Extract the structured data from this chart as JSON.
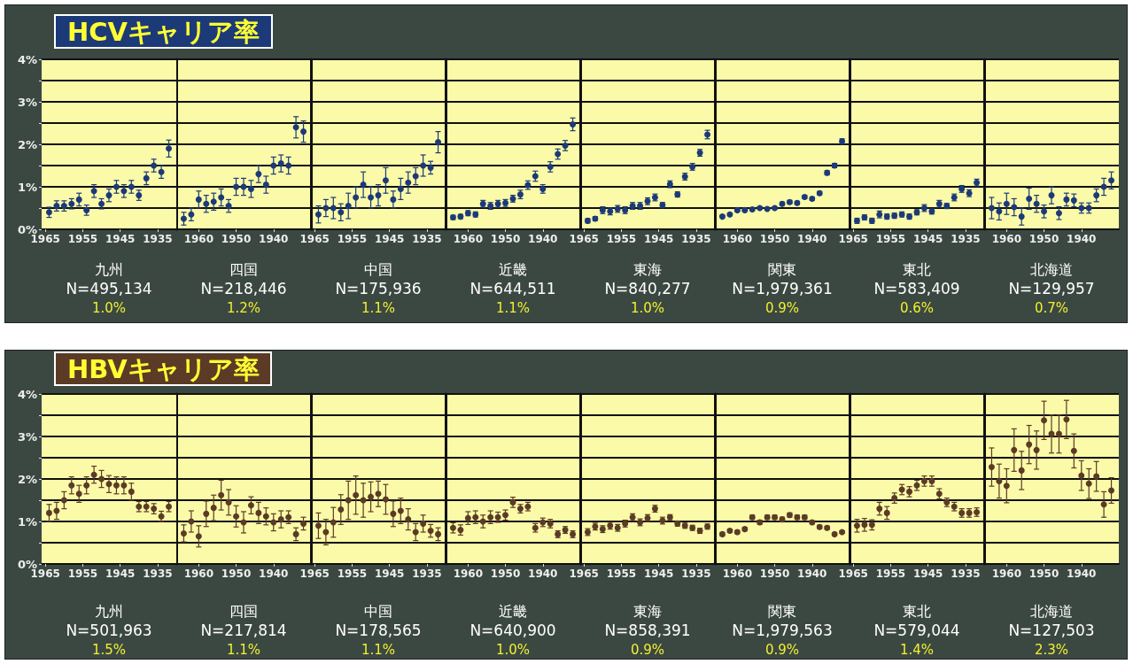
{
  "chart_data": [
    {
      "type": "scatter",
      "title": "HCVキャリア率",
      "xlabel": "九州",
      "annotations": [
        "N=495,134",
        "1.0%"
      ],
      "color": "#1c3a78",
      "marker": "circle",
      "grid": "y",
      "xlim": [
        1966,
        1930
      ],
      "xticks": [
        1965,
        1955,
        1945,
        1935
      ],
      "ylim": [
        0,
        4
      ],
      "yticks": [
        {
          "value": 0,
          "label": "0%"
        },
        {
          "value": 0.5,
          "label": null
        },
        {
          "value": 1,
          "label": "1%"
        },
        {
          "value": 1.5,
          "label": null
        },
        {
          "value": 2,
          "label": "2%"
        },
        {
          "value": 2.5,
          "label": null
        },
        {
          "value": 3,
          "label": "3%"
        },
        {
          "value": 3.5,
          "label": null
        },
        {
          "value": 4,
          "label": "4%"
        }
      ],
      "x": [
        1964,
        1962,
        1960,
        1958,
        1956,
        1954,
        1952,
        1950,
        1948,
        1946,
        1944,
        1942,
        1940,
        1938,
        1936,
        1934,
        1932
      ],
      "values": [
        0.4,
        0.55,
        0.55,
        0.6,
        0.7,
        0.45,
        0.9,
        0.6,
        0.8,
        1.0,
        0.9,
        1.0,
        0.8,
        1.2,
        1.5,
        1.35,
        1.9
      ],
      "errors": [
        0.12,
        0.12,
        0.12,
        0.12,
        0.15,
        0.12,
        0.15,
        0.12,
        0.15,
        0.15,
        0.15,
        0.15,
        0.12,
        0.15,
        0.15,
        0.15,
        0.2
      ]
    },
    {
      "type": "scatter",
      "xlabel": "四国",
      "annotations": [
        "N=218,446",
        "1.2%"
      ],
      "color": "#1c3a78",
      "marker": "circle",
      "grid": "y",
      "tick_labels": "x",
      "xlim": [
        1966,
        1930
      ],
      "xticks": [
        1960,
        1950,
        1940
      ],
      "ylim": [
        0,
        4
      ],
      "yticks": [
        0,
        0.5,
        1,
        1.5,
        2,
        2.5,
        3,
        3.5,
        4
      ],
      "x": [
        1964,
        1962,
        1960,
        1958,
        1956,
        1954,
        1952,
        1950,
        1948,
        1946,
        1944,
        1942,
        1940,
        1938,
        1936,
        1934,
        1932
      ],
      "values": [
        0.25,
        0.35,
        0.7,
        0.6,
        0.65,
        0.75,
        0.55,
        1.0,
        1.0,
        0.95,
        1.3,
        1.05,
        1.5,
        1.55,
        1.5,
        2.4,
        2.3
      ],
      "errors": [
        0.15,
        0.15,
        0.2,
        0.2,
        0.2,
        0.2,
        0.15,
        0.2,
        0.2,
        0.2,
        0.2,
        0.2,
        0.2,
        0.2,
        0.2,
        0.25,
        0.25
      ]
    },
    {
      "type": "scatter",
      "xlabel": "中国",
      "annotations": [
        "N=175,936",
        "1.1%"
      ],
      "color": "#1c3a78",
      "marker": "circle",
      "grid": "y",
      "tick_labels": "x",
      "xlim": [
        1966,
        1930
      ],
      "xticks": [
        1965,
        1955,
        1945,
        1935
      ],
      "ylim": [
        0,
        4
      ],
      "yticks": [
        0,
        0.5,
        1,
        1.5,
        2,
        2.5,
        3,
        3.5,
        4
      ],
      "x": [
        1964,
        1962,
        1960,
        1958,
        1956,
        1954,
        1952,
        1950,
        1948,
        1946,
        1944,
        1942,
        1940,
        1938,
        1936,
        1934,
        1932
      ],
      "values": [
        0.35,
        0.5,
        0.5,
        0.4,
        0.55,
        0.75,
        1.05,
        0.75,
        0.8,
        1.15,
        0.7,
        0.95,
        1.1,
        1.25,
        1.5,
        1.45,
        2.05
      ],
      "errors": [
        0.2,
        0.2,
        0.25,
        0.2,
        0.3,
        0.25,
        0.3,
        0.25,
        0.25,
        0.3,
        0.2,
        0.25,
        0.25,
        0.2,
        0.25,
        0.15,
        0.25
      ]
    },
    {
      "type": "scatter",
      "xlabel": "近畿",
      "annotations": [
        "N=644,511",
        "1.1%"
      ],
      "color": "#1c3a78",
      "marker": "circle",
      "grid": "y",
      "tick_labels": "x",
      "xlim": [
        1966,
        1930
      ],
      "xticks": [
        1960,
        1950,
        1940
      ],
      "ylim": [
        0,
        4
      ],
      "yticks": [
        0,
        0.5,
        1,
        1.5,
        2,
        2.5,
        3,
        3.5,
        4
      ],
      "x": [
        1964,
        1962,
        1960,
        1958,
        1956,
        1954,
        1952,
        1950,
        1948,
        1946,
        1944,
        1942,
        1940,
        1938,
        1936,
        1934,
        1932
      ],
      "values": [
        0.28,
        0.3,
        0.38,
        0.35,
        0.6,
        0.55,
        0.6,
        0.62,
        0.72,
        0.82,
        1.04,
        1.25,
        0.95,
        1.47,
        1.77,
        1.97,
        2.47
      ],
      "errors": [
        0.05,
        0.05,
        0.06,
        0.06,
        0.08,
        0.08,
        0.08,
        0.08,
        0.08,
        0.1,
        0.1,
        0.12,
        0.1,
        0.12,
        0.12,
        0.12,
        0.15
      ]
    },
    {
      "type": "scatter",
      "xlabel": "東海",
      "annotations": [
        "N=840,277",
        "1.0%"
      ],
      "color": "#1c3a78",
      "marker": "circle",
      "grid": "y",
      "tick_labels": "x",
      "xlim": [
        1966,
        1930
      ],
      "xticks": [
        1965,
        1955,
        1945,
        1935
      ],
      "ylim": [
        0,
        4
      ],
      "yticks": [
        0,
        0.5,
        1,
        1.5,
        2,
        2.5,
        3,
        3.5,
        4
      ],
      "x": [
        1964,
        1962,
        1960,
        1958,
        1956,
        1954,
        1952,
        1950,
        1948,
        1946,
        1944,
        1942,
        1940,
        1938,
        1936,
        1934,
        1932
      ],
      "values": [
        0.2,
        0.25,
        0.45,
        0.42,
        0.48,
        0.45,
        0.55,
        0.55,
        0.66,
        0.75,
        0.57,
        1.06,
        0.82,
        1.24,
        1.47,
        1.8,
        2.23
      ],
      "errors": [
        0.05,
        0.05,
        0.08,
        0.08,
        0.08,
        0.08,
        0.08,
        0.08,
        0.08,
        0.08,
        0.06,
        0.08,
        0.06,
        0.08,
        0.08,
        0.08,
        0.1
      ]
    },
    {
      "type": "scatter",
      "xlabel": "関東",
      "annotations": [
        "N=1,979,361",
        "0.9%"
      ],
      "color": "#1c3a78",
      "marker": "circle",
      "grid": "y",
      "tick_labels": "x",
      "xlim": [
        1966,
        1930
      ],
      "xticks": [
        1960,
        1950,
        1940
      ],
      "ylim": [
        0,
        4
      ],
      "yticks": [
        0,
        0.5,
        1,
        1.5,
        2,
        2.5,
        3,
        3.5,
        4
      ],
      "x": [
        1964,
        1962,
        1960,
        1958,
        1956,
        1954,
        1952,
        1950,
        1948,
        1946,
        1944,
        1942,
        1940,
        1938,
        1936,
        1934,
        1932
      ],
      "values": [
        0.3,
        0.35,
        0.45,
        0.45,
        0.47,
        0.5,
        0.48,
        0.5,
        0.6,
        0.64,
        0.62,
        0.76,
        0.72,
        0.85,
        1.33,
        1.5,
        2.07
      ],
      "errors": [
        0.03,
        0.03,
        0.03,
        0.03,
        0.03,
        0.03,
        0.03,
        0.03,
        0.04,
        0.04,
        0.04,
        0.04,
        0.04,
        0.04,
        0.05,
        0.05,
        0.06
      ]
    },
    {
      "type": "scatter",
      "xlabel": "東北",
      "annotations": [
        "N=583,409",
        "0.6%"
      ],
      "color": "#1c3a78",
      "marker": "circle",
      "grid": "y",
      "tick_labels": "x",
      "xlim": [
        1966,
        1930
      ],
      "xticks": [
        1965,
        1955,
        1945,
        1935
      ],
      "ylim": [
        0,
        4
      ],
      "yticks": [
        0,
        0.5,
        1,
        1.5,
        2,
        2.5,
        3,
        3.5,
        4
      ],
      "x": [
        1964,
        1962,
        1960,
        1958,
        1956,
        1954,
        1952,
        1950,
        1948,
        1946,
        1944,
        1942,
        1940,
        1938,
        1936,
        1934,
        1932
      ],
      "values": [
        0.2,
        0.28,
        0.2,
        0.35,
        0.3,
        0.32,
        0.35,
        0.3,
        0.4,
        0.5,
        0.42,
        0.6,
        0.55,
        0.75,
        0.95,
        0.85,
        1.1
      ],
      "errors": [
        0.06,
        0.06,
        0.06,
        0.08,
        0.06,
        0.06,
        0.06,
        0.06,
        0.06,
        0.08,
        0.06,
        0.08,
        0.06,
        0.08,
        0.08,
        0.08,
        0.08
      ]
    },
    {
      "type": "scatter",
      "xlabel": "北海道",
      "annotations": [
        "N=129,957",
        "0.7%"
      ],
      "color": "#1c3a78",
      "marker": "circle",
      "grid": "y",
      "tick_labels": "x",
      "xlim": [
        1966,
        1930
      ],
      "xticks": [
        1960,
        1950,
        1940
      ],
      "ylim": [
        0,
        4
      ],
      "yticks": [
        0,
        0.5,
        1,
        1.5,
        2,
        2.5,
        3,
        3.5,
        4
      ],
      "x": [
        1964,
        1962,
        1960,
        1958,
        1956,
        1954,
        1952,
        1950,
        1948,
        1946,
        1944,
        1942,
        1940,
        1938,
        1936,
        1934,
        1932
      ],
      "values": [
        0.5,
        0.42,
        0.6,
        0.52,
        0.3,
        0.72,
        0.6,
        0.42,
        0.8,
        0.38,
        0.7,
        0.68,
        0.5,
        0.5,
        0.8,
        1.0,
        1.15
      ],
      "errors": [
        0.25,
        0.2,
        0.25,
        0.2,
        0.2,
        0.25,
        0.2,
        0.15,
        0.2,
        0.15,
        0.15,
        0.15,
        0.12,
        0.12,
        0.15,
        0.2,
        0.2
      ]
    },
    {
      "type": "scatter",
      "title": "HBVキャリア率",
      "xlabel": "九州",
      "annotations": [
        "N=501,963",
        "1.5%"
      ],
      "color": "#5b3b25",
      "marker": "circle",
      "grid": "y",
      "xlim": [
        1966,
        1930
      ],
      "xticks": [
        1965,
        1955,
        1945,
        1935
      ],
      "ylim": [
        0,
        4
      ],
      "yticks": [
        {
          "value": 0,
          "label": "0%"
        },
        {
          "value": 0.5,
          "label": null
        },
        {
          "value": 1,
          "label": "1%"
        },
        {
          "value": 1.5,
          "label": null
        },
        {
          "value": 2,
          "label": "2%"
        },
        {
          "value": 2.5,
          "label": null
        },
        {
          "value": 3,
          "label": "3%"
        },
        {
          "value": 3.5,
          "label": null
        },
        {
          "value": 4,
          "label": "4%"
        }
      ],
      "x": [
        1964,
        1962,
        1960,
        1958,
        1956,
        1954,
        1952,
        1950,
        1948,
        1946,
        1944,
        1942,
        1940,
        1938,
        1936,
        1934,
        1932
      ],
      "values": [
        1.2,
        1.25,
        1.5,
        1.85,
        1.65,
        1.85,
        2.1,
        2.0,
        1.88,
        1.85,
        1.85,
        1.7,
        1.35,
        1.35,
        1.3,
        1.12,
        1.35
      ],
      "errors": [
        0.2,
        0.2,
        0.2,
        0.2,
        0.2,
        0.2,
        0.2,
        0.2,
        0.2,
        0.2,
        0.2,
        0.2,
        0.12,
        0.12,
        0.12,
        0.12,
        0.12
      ]
    },
    {
      "type": "scatter",
      "xlabel": "四国",
      "annotations": [
        "N=217,814",
        "1.1%"
      ],
      "color": "#5b3b25",
      "marker": "circle",
      "grid": "y",
      "tick_labels": "x",
      "xlim": [
        1966,
        1930
      ],
      "xticks": [
        1960,
        1950,
        1940
      ],
      "ylim": [
        0,
        4
      ],
      "yticks": [
        0,
        0.5,
        1,
        1.5,
        2,
        2.5,
        3,
        3.5,
        4
      ],
      "x": [
        1964,
        1962,
        1960,
        1958,
        1956,
        1954,
        1952,
        1950,
        1948,
        1946,
        1944,
        1942,
        1940,
        1938,
        1936,
        1934,
        1932
      ],
      "values": [
        0.72,
        1.0,
        0.65,
        1.18,
        1.32,
        1.62,
        1.45,
        1.12,
        0.98,
        1.38,
        1.2,
        1.12,
        0.98,
        1.05,
        1.1,
        0.7,
        0.95
      ],
      "errors": [
        0.2,
        0.25,
        0.25,
        0.3,
        0.3,
        0.35,
        0.3,
        0.25,
        0.25,
        0.2,
        0.25,
        0.2,
        0.2,
        0.2,
        0.15,
        0.15,
        0.15
      ]
    },
    {
      "type": "scatter",
      "xlabel": "中国",
      "annotations": [
        "N=178,565",
        "1.1%"
      ],
      "color": "#5b3b25",
      "marker": "circle",
      "grid": "y",
      "tick_labels": "x",
      "xlim": [
        1966,
        1930
      ],
      "xticks": [
        1965,
        1955,
        1945,
        1935
      ],
      "ylim": [
        0,
        4
      ],
      "yticks": [
        0,
        0.5,
        1,
        1.5,
        2,
        2.5,
        3,
        3.5,
        4
      ],
      "x": [
        1964,
        1962,
        1960,
        1958,
        1956,
        1954,
        1952,
        1950,
        1948,
        1946,
        1944,
        1942,
        1940,
        1938,
        1936,
        1934,
        1932
      ],
      "values": [
        0.9,
        0.75,
        0.98,
        1.28,
        1.5,
        1.62,
        1.5,
        1.58,
        1.65,
        1.52,
        1.18,
        1.25,
        1.05,
        0.75,
        0.95,
        0.78,
        0.7
      ],
      "errors": [
        0.3,
        0.3,
        0.35,
        0.35,
        0.45,
        0.45,
        0.4,
        0.35,
        0.3,
        0.35,
        0.3,
        0.3,
        0.25,
        0.2,
        0.2,
        0.15,
        0.15
      ]
    },
    {
      "type": "scatter",
      "xlabel": "近畿",
      "annotations": [
        "N=640,900",
        "1.0%"
      ],
      "color": "#5b3b25",
      "marker": "circle",
      "grid": "y",
      "tick_labels": "x",
      "xlim": [
        1966,
        1930
      ],
      "xticks": [
        1960,
        1950,
        1940
      ],
      "ylim": [
        0,
        4
      ],
      "yticks": [
        0,
        0.5,
        1,
        1.5,
        2,
        2.5,
        3,
        3.5,
        4
      ],
      "x": [
        1964,
        1962,
        1960,
        1958,
        1956,
        1954,
        1952,
        1950,
        1948,
        1946,
        1944,
        1942,
        1940,
        1938,
        1936,
        1934,
        1932
      ],
      "values": [
        0.85,
        0.8,
        1.08,
        1.1,
        1.0,
        1.1,
        1.1,
        1.15,
        1.45,
        1.3,
        1.35,
        0.85,
        0.98,
        0.95,
        0.7,
        0.8,
        0.7
      ],
      "errors": [
        0.12,
        0.12,
        0.15,
        0.15,
        0.15,
        0.15,
        0.12,
        0.12,
        0.12,
        0.1,
        0.1,
        0.1,
        0.1,
        0.1,
        0.08,
        0.08,
        0.08
      ]
    },
    {
      "type": "scatter",
      "xlabel": "東海",
      "annotations": [
        "N=858,391",
        "0.9%"
      ],
      "color": "#5b3b25",
      "marker": "circle",
      "grid": "y",
      "tick_labels": "x",
      "xlim": [
        1966,
        1930
      ],
      "xticks": [
        1965,
        1955,
        1945,
        1935
      ],
      "ylim": [
        0,
        4
      ],
      "yticks": [
        0,
        0.5,
        1,
        1.5,
        2,
        2.5,
        3,
        3.5,
        4
      ],
      "x": [
        1964,
        1962,
        1960,
        1958,
        1956,
        1954,
        1952,
        1950,
        1948,
        1946,
        1944,
        1942,
        1940,
        1938,
        1936,
        1934,
        1932
      ],
      "values": [
        0.75,
        0.88,
        0.82,
        0.9,
        0.85,
        0.95,
        1.1,
        0.98,
        1.08,
        1.3,
        1.02,
        1.1,
        0.95,
        0.9,
        0.85,
        0.78,
        0.88
      ],
      "errors": [
        0.08,
        0.08,
        0.08,
        0.08,
        0.08,
        0.08,
        0.08,
        0.08,
        0.08,
        0.08,
        0.08,
        0.06,
        0.06,
        0.06,
        0.06,
        0.06,
        0.06
      ]
    },
    {
      "type": "scatter",
      "xlabel": "関東",
      "annotations": [
        "N=1,979,563",
        "0.9%"
      ],
      "color": "#5b3b25",
      "marker": "circle",
      "grid": "y",
      "tick_labels": "x",
      "xlim": [
        1966,
        1930
      ],
      "xticks": [
        1960,
        1950,
        1940
      ],
      "ylim": [
        0,
        4
      ],
      "yticks": [
        0,
        0.5,
        1,
        1.5,
        2,
        2.5,
        3,
        3.5,
        4
      ],
      "x": [
        1964,
        1962,
        1960,
        1958,
        1956,
        1954,
        1952,
        1950,
        1948,
        1946,
        1944,
        1942,
        1940,
        1938,
        1936,
        1934,
        1932
      ],
      "values": [
        0.7,
        0.78,
        0.75,
        0.82,
        1.1,
        0.98,
        1.1,
        1.1,
        1.05,
        1.15,
        1.1,
        1.1,
        0.98,
        0.87,
        0.85,
        0.7,
        0.75
      ],
      "errors": [
        0.04,
        0.04,
        0.04,
        0.04,
        0.05,
        0.05,
        0.05,
        0.05,
        0.05,
        0.05,
        0.05,
        0.05,
        0.04,
        0.04,
        0.04,
        0.03,
        0.03
      ]
    },
    {
      "type": "scatter",
      "xlabel": "東北",
      "annotations": [
        "N=579,044",
        "1.4%"
      ],
      "color": "#5b3b25",
      "marker": "circle",
      "grid": "y",
      "tick_labels": "x",
      "xlim": [
        1966,
        1930
      ],
      "xticks": [
        1965,
        1955,
        1945,
        1935
      ],
      "ylim": [
        0,
        4
      ],
      "yticks": [
        0,
        0.5,
        1,
        1.5,
        2,
        2.5,
        3,
        3.5,
        4
      ],
      "x": [
        1964,
        1962,
        1960,
        1958,
        1956,
        1954,
        1952,
        1950,
        1948,
        1946,
        1944,
        1942,
        1940,
        1938,
        1936,
        1934,
        1932
      ],
      "values": [
        0.9,
        0.92,
        0.92,
        1.3,
        1.2,
        1.55,
        1.75,
        1.7,
        1.85,
        1.95,
        1.95,
        1.65,
        1.45,
        1.35,
        1.2,
        1.2,
        1.22
      ],
      "errors": [
        0.15,
        0.15,
        0.12,
        0.15,
        0.15,
        0.12,
        0.12,
        0.12,
        0.12,
        0.12,
        0.12,
        0.12,
        0.1,
        0.1,
        0.1,
        0.1,
        0.1
      ]
    },
    {
      "type": "scatter",
      "xlabel": "北海道",
      "annotations": [
        "N=127,503",
        "2.3%"
      ],
      "color": "#5b3b25",
      "marker": "circle",
      "grid": "y",
      "tick_labels": "x",
      "xlim": [
        1966,
        1930
      ],
      "xticks": [
        1960,
        1950,
        1940
      ],
      "ylim": [
        0,
        4
      ],
      "yticks": [
        0,
        0.5,
        1,
        1.5,
        2,
        2.5,
        3,
        3.5,
        4
      ],
      "x": [
        1964,
        1962,
        1960,
        1958,
        1956,
        1954,
        1952,
        1950,
        1948,
        1946,
        1944,
        1942,
        1940,
        1938,
        1936,
        1934,
        1932
      ],
      "values": [
        2.28,
        1.95,
        1.84,
        2.68,
        2.2,
        2.81,
        2.68,
        3.38,
        3.06,
        3.06,
        3.4,
        2.66,
        2.08,
        1.89,
        2.06,
        1.4,
        1.73
      ],
      "errors": [
        0.45,
        0.4,
        0.4,
        0.5,
        0.45,
        0.45,
        0.45,
        0.45,
        0.45,
        0.45,
        0.45,
        0.4,
        0.35,
        0.35,
        0.35,
        0.3,
        0.3
      ]
    }
  ]
}
